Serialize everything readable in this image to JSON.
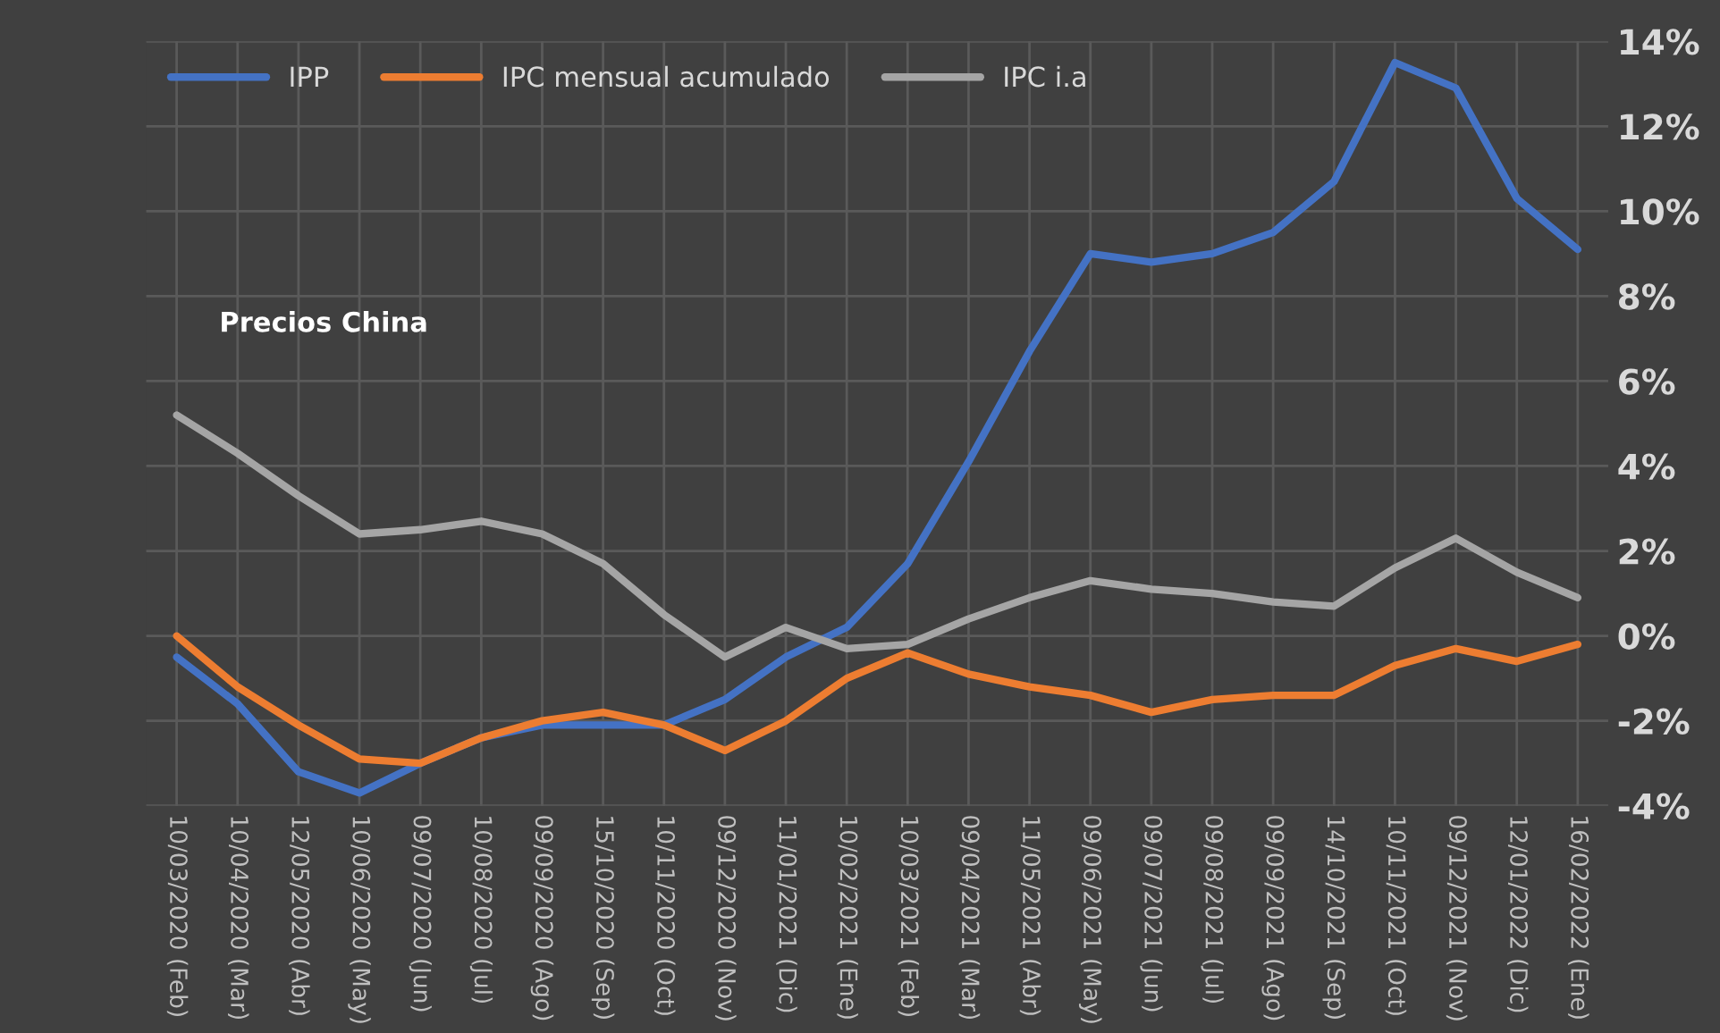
{
  "chart_data": {
    "type": "line",
    "categories": [
      "10/03/2020 (Feb)",
      "10/04/2020 (Mar)",
      "12/05/2020 (Abr)",
      "10/06/2020 (May)",
      "09/07/2020 (Jun)",
      "10/08/2020 (Jul)",
      "09/09/2020 (Ago)",
      "15/10/2020 (Sep)",
      "10/11/2020 (Oct)",
      "09/12/2020 (Nov)",
      "11/01/2021 (Dic)",
      "10/02/2021 (Ene)",
      "10/03/2021 (Feb)",
      "09/04/2021 (Mar)",
      "11/05/2021 (Abr)",
      "09/06/2021 (May)",
      "09/07/2021 (Jun)",
      "09/08/2021 (Jul)",
      "09/09/2021 (Ago)",
      "14/10/2021 (Sep)",
      "10/11/2021 (Oct)",
      "09/12/2021 (Nov)",
      "12/01/2022 (Dic)",
      "16/02/2022 (Ene)"
    ],
    "series": [
      {
        "name": "IPP",
        "color": "#4472c4",
        "values": [
          -0.5,
          -1.6,
          -3.2,
          -3.7,
          -3.0,
          -2.4,
          -2.1,
          -2.1,
          -2.1,
          -1.5,
          -0.5,
          0.2,
          1.7,
          4.1,
          6.7,
          9.0,
          8.8,
          9.0,
          9.5,
          10.7,
          13.5,
          12.9,
          10.3,
          9.1
        ]
      },
      {
        "name": "IPC mensual acumulado",
        "color": "#ed7d31",
        "values": [
          0.0,
          -1.2,
          -2.1,
          -2.9,
          -3.0,
          -2.4,
          -2.0,
          -1.8,
          -2.1,
          -2.7,
          -2.0,
          -1.0,
          -0.4,
          -0.9,
          -1.2,
          -1.4,
          -1.8,
          -1.5,
          -1.4,
          -1.4,
          -0.7,
          -0.3,
          -0.6,
          -0.2
        ]
      },
      {
        "name": "IPC i.a",
        "color": "#a5a5a5",
        "values": [
          5.2,
          4.3,
          3.3,
          2.4,
          2.5,
          2.7,
          2.4,
          1.7,
          0.5,
          -0.5,
          0.2,
          -0.3,
          -0.2,
          0.4,
          0.9,
          1.3,
          1.1,
          1.0,
          0.8,
          0.7,
          1.6,
          2.3,
          1.5,
          0.9
        ]
      }
    ],
    "ylim": [
      -4,
      14
    ],
    "yticks": [
      {
        "value": -4,
        "label": "-4%"
      },
      {
        "value": -2,
        "label": "-2%"
      },
      {
        "value": 0,
        "label": "0%"
      },
      {
        "value": 2,
        "label": "2%"
      },
      {
        "value": 4,
        "label": "4%"
      },
      {
        "value": 6,
        "label": "6%"
      },
      {
        "value": 8,
        "label": "8%"
      },
      {
        "value": 10,
        "label": "10%"
      },
      {
        "value": 12,
        "label": "12%"
      },
      {
        "value": 14,
        "label": "14%"
      }
    ],
    "annotations": [
      "Precios China"
    ],
    "grid": true,
    "legend": "top left",
    "line_style": "solid",
    "marker": "none"
  }
}
